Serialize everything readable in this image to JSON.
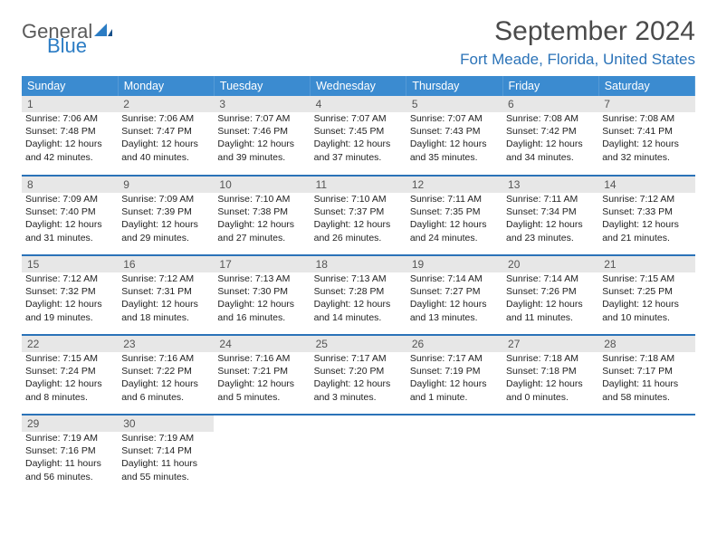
{
  "logo": {
    "general": "General",
    "blue": "Blue"
  },
  "title": "September 2024",
  "location": "Fort Meade, Florida, United States",
  "colors": {
    "header_bg": "#3b8bd0",
    "accent": "#2b73b8",
    "daynum_bg": "#e7e7e7",
    "text": "#222222"
  },
  "dayHeaders": [
    "Sunday",
    "Monday",
    "Tuesday",
    "Wednesday",
    "Thursday",
    "Friday",
    "Saturday"
  ],
  "weeks": [
    [
      {
        "n": "1",
        "sr": "7:06 AM",
        "ss": "7:48 PM",
        "dl": "12 hours and 42 minutes."
      },
      {
        "n": "2",
        "sr": "7:06 AM",
        "ss": "7:47 PM",
        "dl": "12 hours and 40 minutes."
      },
      {
        "n": "3",
        "sr": "7:07 AM",
        "ss": "7:46 PM",
        "dl": "12 hours and 39 minutes."
      },
      {
        "n": "4",
        "sr": "7:07 AM",
        "ss": "7:45 PM",
        "dl": "12 hours and 37 minutes."
      },
      {
        "n": "5",
        "sr": "7:07 AM",
        "ss": "7:43 PM",
        "dl": "12 hours and 35 minutes."
      },
      {
        "n": "6",
        "sr": "7:08 AM",
        "ss": "7:42 PM",
        "dl": "12 hours and 34 minutes."
      },
      {
        "n": "7",
        "sr": "7:08 AM",
        "ss": "7:41 PM",
        "dl": "12 hours and 32 minutes."
      }
    ],
    [
      {
        "n": "8",
        "sr": "7:09 AM",
        "ss": "7:40 PM",
        "dl": "12 hours and 31 minutes."
      },
      {
        "n": "9",
        "sr": "7:09 AM",
        "ss": "7:39 PM",
        "dl": "12 hours and 29 minutes."
      },
      {
        "n": "10",
        "sr": "7:10 AM",
        "ss": "7:38 PM",
        "dl": "12 hours and 27 minutes."
      },
      {
        "n": "11",
        "sr": "7:10 AM",
        "ss": "7:37 PM",
        "dl": "12 hours and 26 minutes."
      },
      {
        "n": "12",
        "sr": "7:11 AM",
        "ss": "7:35 PM",
        "dl": "12 hours and 24 minutes."
      },
      {
        "n": "13",
        "sr": "7:11 AM",
        "ss": "7:34 PM",
        "dl": "12 hours and 23 minutes."
      },
      {
        "n": "14",
        "sr": "7:12 AM",
        "ss": "7:33 PM",
        "dl": "12 hours and 21 minutes."
      }
    ],
    [
      {
        "n": "15",
        "sr": "7:12 AM",
        "ss": "7:32 PM",
        "dl": "12 hours and 19 minutes."
      },
      {
        "n": "16",
        "sr": "7:12 AM",
        "ss": "7:31 PM",
        "dl": "12 hours and 18 minutes."
      },
      {
        "n": "17",
        "sr": "7:13 AM",
        "ss": "7:30 PM",
        "dl": "12 hours and 16 minutes."
      },
      {
        "n": "18",
        "sr": "7:13 AM",
        "ss": "7:28 PM",
        "dl": "12 hours and 14 minutes."
      },
      {
        "n": "19",
        "sr": "7:14 AM",
        "ss": "7:27 PM",
        "dl": "12 hours and 13 minutes."
      },
      {
        "n": "20",
        "sr": "7:14 AM",
        "ss": "7:26 PM",
        "dl": "12 hours and 11 minutes."
      },
      {
        "n": "21",
        "sr": "7:15 AM",
        "ss": "7:25 PM",
        "dl": "12 hours and 10 minutes."
      }
    ],
    [
      {
        "n": "22",
        "sr": "7:15 AM",
        "ss": "7:24 PM",
        "dl": "12 hours and 8 minutes."
      },
      {
        "n": "23",
        "sr": "7:16 AM",
        "ss": "7:22 PM",
        "dl": "12 hours and 6 minutes."
      },
      {
        "n": "24",
        "sr": "7:16 AM",
        "ss": "7:21 PM",
        "dl": "12 hours and 5 minutes."
      },
      {
        "n": "25",
        "sr": "7:17 AM",
        "ss": "7:20 PM",
        "dl": "12 hours and 3 minutes."
      },
      {
        "n": "26",
        "sr": "7:17 AM",
        "ss": "7:19 PM",
        "dl": "12 hours and 1 minute."
      },
      {
        "n": "27",
        "sr": "7:18 AM",
        "ss": "7:18 PM",
        "dl": "12 hours and 0 minutes."
      },
      {
        "n": "28",
        "sr": "7:18 AM",
        "ss": "7:17 PM",
        "dl": "11 hours and 58 minutes."
      }
    ],
    [
      {
        "n": "29",
        "sr": "7:19 AM",
        "ss": "7:16 PM",
        "dl": "11 hours and 56 minutes."
      },
      {
        "n": "30",
        "sr": "7:19 AM",
        "ss": "7:14 PM",
        "dl": "11 hours and 55 minutes."
      },
      null,
      null,
      null,
      null,
      null
    ]
  ],
  "labels": {
    "sunrise": "Sunrise: ",
    "sunset": "Sunset: ",
    "daylight": "Daylight: "
  }
}
